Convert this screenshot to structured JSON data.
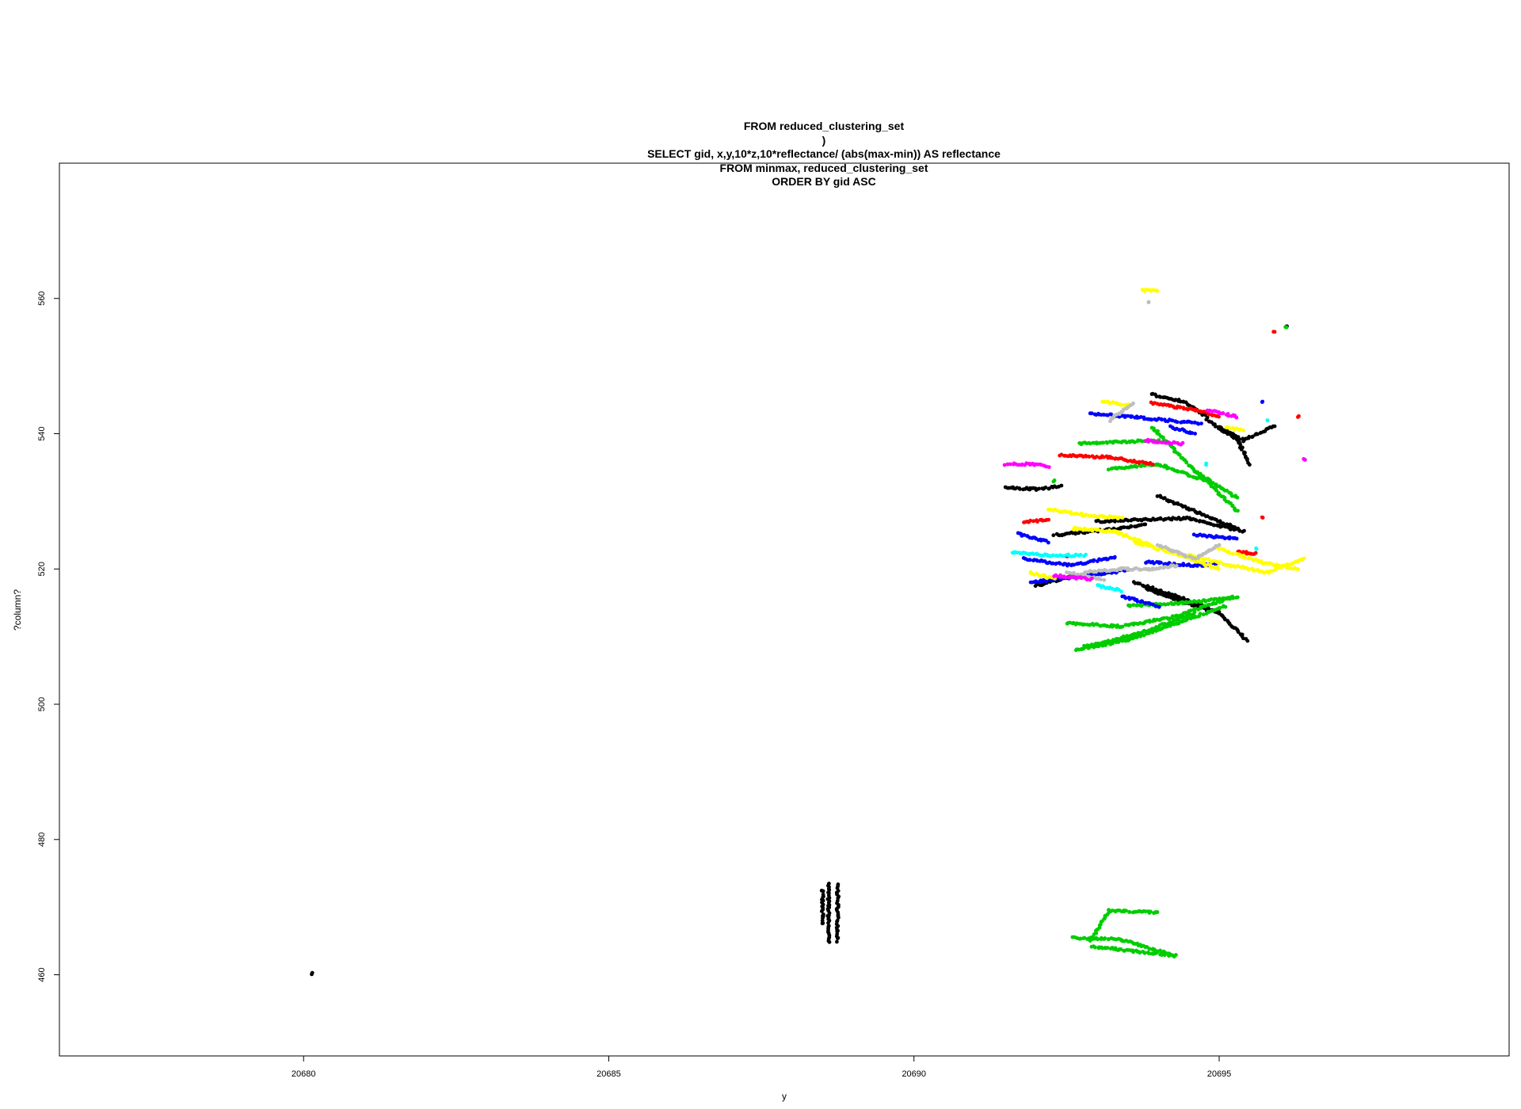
{
  "chart_data": {
    "type": "scatter",
    "title_lines": [
      "FROM reduced_clustering_set",
      ")",
      "SELECT gid, x,y,10*z,10*reflectance/ (abs(max-min)) AS reflectance",
      "FROM minmax, reduced_clustering_set",
      "ORDER BY gid ASC"
    ],
    "xlabel": "y",
    "ylabel": "?column?",
    "xlim": [
      20676.0,
      20699.75
    ],
    "ylim": [
      448.0,
      580.0
    ],
    "x_ticks": [
      "20680",
      "20685",
      "20690",
      "20695"
    ],
    "y_ticks": [
      "460",
      "480",
      "500",
      "520",
      "540",
      "560"
    ],
    "grid": false,
    "legend": "none",
    "colors": {
      "black": "#000000",
      "green": "#00cd00",
      "red": "#ff0000",
      "blue": "#0000ff",
      "yellow": "#ffff00",
      "gray": "#bebebe",
      "magenta": "#ff00ff",
      "cyan": "#00ffff"
    },
    "series": [
      {
        "color": "black",
        "paths": [
          [
            [
              20680.15,
              460.2
            ],
            [
              20680.15,
              460.2
            ]
          ],
          [
            [
              20688.6,
              473.5
            ],
            [
              20688.6,
              464.8
            ]
          ],
          [
            [
              20688.75,
              473.3
            ],
            [
              20688.75,
              465.0
            ]
          ],
          [
            [
              20688.5,
              472.5
            ],
            [
              20688.5,
              467.5
            ]
          ],
          [
            [
              20691.5,
              532.0
            ],
            [
              20692.0,
              531.8
            ],
            [
              20692.4,
              532.2
            ]
          ],
          [
            [
              20693.9,
              545.8
            ],
            [
              20694.4,
              544.8
            ],
            [
              20694.8,
              542.5
            ]
          ],
          [
            [
              20694.8,
              542.0
            ],
            [
              20695.3,
              539.0
            ],
            [
              20695.5,
              535.5
            ]
          ],
          [
            [
              20695.0,
              541.0
            ],
            [
              20695.4,
              539.0
            ],
            [
              20695.9,
              541.2
            ]
          ],
          [
            [
              20693.0,
              527.0
            ],
            [
              20693.8,
              527.3
            ],
            [
              20694.5,
              527.5
            ],
            [
              20695.4,
              525.5
            ]
          ],
          [
            [
              20694.0,
              530.8
            ],
            [
              20694.6,
              528.5
            ],
            [
              20695.3,
              526.0
            ]
          ],
          [
            [
              20692.3,
              525.0
            ],
            [
              20693.2,
              525.8
            ],
            [
              20693.8,
              526.6
            ]
          ],
          [
            [
              20692.0,
              517.5
            ],
            [
              20692.6,
              519.0
            ],
            [
              20693.2,
              519.5
            ]
          ],
          [
            [
              20693.6,
              518.0
            ],
            [
              20694.3,
              516.0
            ],
            [
              20695.0,
              513.5
            ],
            [
              20695.45,
              509.5
            ]
          ],
          [
            [
              20693.8,
              517.0
            ],
            [
              20694.8,
              514.0
            ]
          ],
          [
            [
              20696.1,
              556.0
            ],
            [
              20696.1,
              556.0
            ]
          ]
        ]
      },
      {
        "color": "green",
        "paths": [
          [
            [
              20692.6,
              465.5
            ],
            [
              20693.4,
              465.2
            ],
            [
              20694.2,
              463.0
            ]
          ],
          [
            [
              20692.9,
              464.2
            ],
            [
              20693.6,
              463.5
            ],
            [
              20694.3,
              462.8
            ]
          ],
          [
            [
              20692.9,
              465.0
            ],
            [
              20693.2,
              469.5
            ],
            [
              20694.0,
              469.2
            ]
          ],
          [
            [
              20692.65,
              508.0
            ],
            [
              20693.5,
              509.5
            ],
            [
              20694.3,
              512.0
            ],
            [
              20695.1,
              514.5
            ]
          ],
          [
            [
              20692.8,
              508.5
            ],
            [
              20693.7,
              510.5
            ],
            [
              20694.6,
              513.5
            ]
          ],
          [
            [
              20692.5,
              512.0
            ],
            [
              20693.4,
              511.5
            ],
            [
              20694.3,
              513.0
            ],
            [
              20695.2,
              515.8
            ]
          ],
          [
            [
              20693.5,
              514.5
            ],
            [
              20694.4,
              515.0
            ],
            [
              20695.3,
              515.8
            ]
          ],
          [
            [
              20692.7,
              538.5
            ],
            [
              20693.4,
              538.8
            ],
            [
              20694.0,
              539.0
            ]
          ],
          [
            [
              20693.2,
              534.8
            ],
            [
              20694.0,
              535.5
            ],
            [
              20694.8,
              533.0
            ],
            [
              20695.3,
              528.5
            ]
          ],
          [
            [
              20693.9,
              541.0
            ],
            [
              20694.6,
              534.5
            ],
            [
              20695.3,
              530.5
            ]
          ],
          [
            [
              20692.3,
              533.0
            ],
            [
              20692.3,
              533.0
            ]
          ],
          [
            [
              20696.1,
              555.8
            ],
            [
              20696.1,
              555.8
            ]
          ]
        ]
      },
      {
        "color": "red",
        "paths": [
          [
            [
              20692.4,
              536.8
            ],
            [
              20693.2,
              536.5
            ],
            [
              20693.9,
              535.5
            ]
          ],
          [
            [
              20693.9,
              544.5
            ],
            [
              20694.6,
              543.5
            ],
            [
              20695.0,
              542.5
            ]
          ],
          [
            [
              20691.8,
              527.0
            ],
            [
              20692.2,
              527.2
            ]
          ],
          [
            [
              20692.5,
              522.0
            ],
            [
              20692.5,
              522.0
            ]
          ],
          [
            [
              20695.7,
              527.5
            ],
            [
              20695.7,
              527.5
            ]
          ],
          [
            [
              20695.3,
              522.5
            ],
            [
              20695.6,
              522.3
            ]
          ],
          [
            [
              20695.9,
              555.0
            ],
            [
              20695.9,
              555.0
            ]
          ],
          [
            [
              20696.3,
              542.5
            ],
            [
              20696.3,
              542.5
            ]
          ]
        ]
      },
      {
        "color": "blue",
        "paths": [
          [
            [
              20692.9,
              543.0
            ],
            [
              20693.9,
              542.2
            ],
            [
              20694.7,
              541.5
            ]
          ],
          [
            [
              20691.7,
              525.2
            ],
            [
              20692.2,
              524.0
            ]
          ],
          [
            [
              20691.8,
              521.5
            ],
            [
              20692.6,
              520.5
            ],
            [
              20693.3,
              521.8
            ]
          ],
          [
            [
              20691.9,
              518.0
            ],
            [
              20692.8,
              519.0
            ],
            [
              20693.5,
              519.8
            ]
          ],
          [
            [
              20693.8,
              521.0
            ],
            [
              20694.6,
              520.5
            ],
            [
              20695.0,
              520.8
            ]
          ],
          [
            [
              20694.6,
              525.0
            ],
            [
              20695.3,
              524.5
            ]
          ],
          [
            [
              20693.4,
              516.0
            ],
            [
              20694.0,
              514.5
            ]
          ],
          [
            [
              20694.2,
              541.0
            ],
            [
              20694.6,
              540.0
            ]
          ],
          [
            [
              20695.7,
              544.8
            ],
            [
              20695.7,
              544.8
            ]
          ]
        ]
      },
      {
        "color": "yellow",
        "paths": [
          [
            [
              20692.2,
              528.8
            ],
            [
              20692.8,
              528.0
            ],
            [
              20693.4,
              527.5
            ]
          ],
          [
            [
              20692.6,
              526.0
            ],
            [
              20693.3,
              525.5
            ],
            [
              20693.9,
              523.5
            ]
          ],
          [
            [
              20693.6,
              524.0
            ],
            [
              20694.2,
              522.5
            ],
            [
              20695.0,
              520.0
            ]
          ],
          [
            [
              20694.5,
              522.0
            ],
            [
              20695.2,
              520.5
            ],
            [
              20695.8,
              519.5
            ],
            [
              20696.4,
              521.5
            ]
          ],
          [
            [
              20695.0,
              523.0
            ],
            [
              20695.7,
              521.0
            ],
            [
              20696.3,
              520.0
            ]
          ],
          [
            [
              20691.9,
              519.5
            ],
            [
              20692.3,
              518.5
            ]
          ],
          [
            [
              20693.1,
              544.8
            ],
            [
              20693.5,
              544.2
            ]
          ],
          [
            [
              20695.1,
              541.0
            ],
            [
              20695.4,
              540.5
            ]
          ],
          [
            [
              20693.75,
              561.2
            ],
            [
              20694.0,
              561.1
            ]
          ]
        ]
      },
      {
        "color": "gray",
        "paths": [
          [
            [
              20692.8,
              519.5
            ],
            [
              20693.4,
              520.0
            ],
            [
              20693.9,
              520.0
            ],
            [
              20694.3,
              520.5
            ]
          ],
          [
            [
              20692.5,
              519.5
            ],
            [
              20693.1,
              518.5
            ]
          ],
          [
            [
              20694.0,
              523.5
            ],
            [
              20694.6,
              521.5
            ],
            [
              20695.0,
              523.5
            ]
          ],
          [
            [
              20693.2,
              542.0
            ],
            [
              20693.6,
              544.5
            ]
          ],
          [
            [
              20693.85,
              559.5
            ],
            [
              20693.85,
              559.5
            ]
          ]
        ]
      },
      {
        "color": "magenta",
        "paths": [
          [
            [
              20691.5,
              535.5
            ],
            [
              20691.9,
              535.5
            ],
            [
              20692.2,
              535.2
            ]
          ],
          [
            [
              20693.8,
              539.0
            ],
            [
              20694.4,
              538.5
            ]
          ],
          [
            [
              20694.8,
              543.5
            ],
            [
              20695.3,
              542.5
            ]
          ],
          [
            [
              20692.3,
              519.0
            ],
            [
              20692.9,
              518.5
            ]
          ],
          [
            [
              20696.4,
              536.2
            ],
            [
              20696.4,
              536.2
            ]
          ]
        ]
      },
      {
        "color": "cyan",
        "paths": [
          [
            [
              20691.6,
              522.5
            ],
            [
              20692.2,
              522.0
            ],
            [
              20692.8,
              522.0
            ]
          ],
          [
            [
              20693.0,
              517.5
            ],
            [
              20693.4,
              516.8
            ]
          ],
          [
            [
              20695.6,
              523.0
            ],
            [
              20695.6,
              523.0
            ]
          ],
          [
            [
              20695.8,
              542.0
            ],
            [
              20695.8,
              542.0
            ]
          ],
          [
            [
              20694.8,
              535.5
            ],
            [
              20694.8,
              535.5
            ]
          ]
        ]
      }
    ]
  }
}
